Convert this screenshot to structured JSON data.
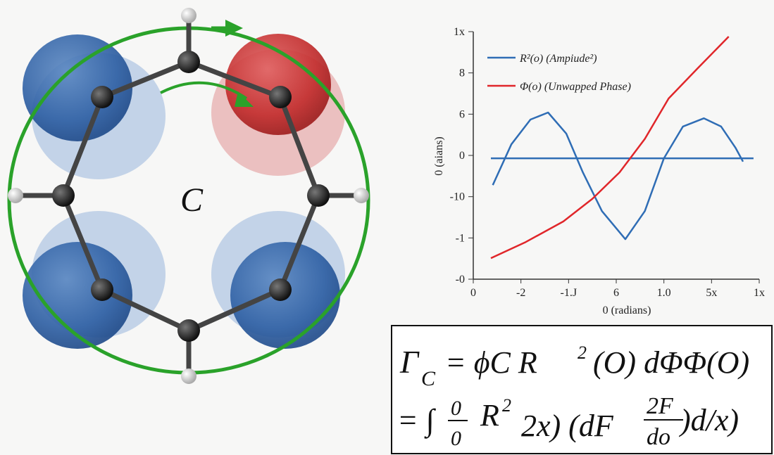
{
  "diagram": {
    "label": "C"
  },
  "chart_data": {
    "type": "line",
    "y_label": "0 (aians)",
    "x_label": "0 (radians)",
    "xlim": [
      0,
      6
    ],
    "ylim": [
      0,
      6
    ],
    "xticks": [
      {
        "value": 0,
        "label": "0"
      },
      {
        "value": 1,
        "label": "-2"
      },
      {
        "value": 2,
        "label": "-1.J"
      },
      {
        "value": 3,
        "label": "6"
      },
      {
        "value": 4,
        "label": "1.0"
      },
      {
        "value": 5,
        "label": "5x"
      },
      {
        "value": 6,
        "label": "1x"
      }
    ],
    "yticks": [
      {
        "value": 0,
        "label": "-0"
      },
      {
        "value": 1,
        "label": "-1"
      },
      {
        "value": 2,
        "label": "-10"
      },
      {
        "value": 3,
        "label": "0"
      },
      {
        "value": 4,
        "label": "6"
      },
      {
        "value": 5,
        "label": "8"
      },
      {
        "value": 6,
        "label": "1x"
      }
    ],
    "series": [
      {
        "name": "R²(o) (Ampiude²)",
        "color": "#2f6db5",
        "x": [
          0.41,
          0.8,
          1.2,
          1.57,
          1.95,
          2.3,
          2.7,
          3.19,
          3.6,
          4.0,
          4.4,
          4.84,
          5.2,
          5.5,
          5.66,
          null,
          0.37,
          5.88
        ],
        "values": [
          2.28,
          3.27,
          3.87,
          4.04,
          3.53,
          2.59,
          1.65,
          0.97,
          1.65,
          2.93,
          3.7,
          3.9,
          3.7,
          3.19,
          2.85,
          null,
          2.93,
          2.93
        ]
      },
      {
        "name": "Φ(o) (Unwapped Phase)",
        "color": "#e0262a",
        "x": [
          0.37,
          1.1,
          1.89,
          2.5,
          3.07,
          3.6,
          4.1,
          4.7,
          5.36
        ],
        "values": [
          0.51,
          0.9,
          1.4,
          1.95,
          2.59,
          3.4,
          4.38,
          5.1,
          5.88
        ]
      }
    ]
  },
  "formula": {
    "line1": [
      "Γ",
      "C",
      "= ϕC  R",
      "2",
      "(O) dΦΦ(O)"
    ],
    "line2": [
      "= ∫",
      "0",
      "0",
      "R",
      "2",
      "2x)  (dF",
      "2F",
      "do",
      ")d/x)"
    ]
  }
}
